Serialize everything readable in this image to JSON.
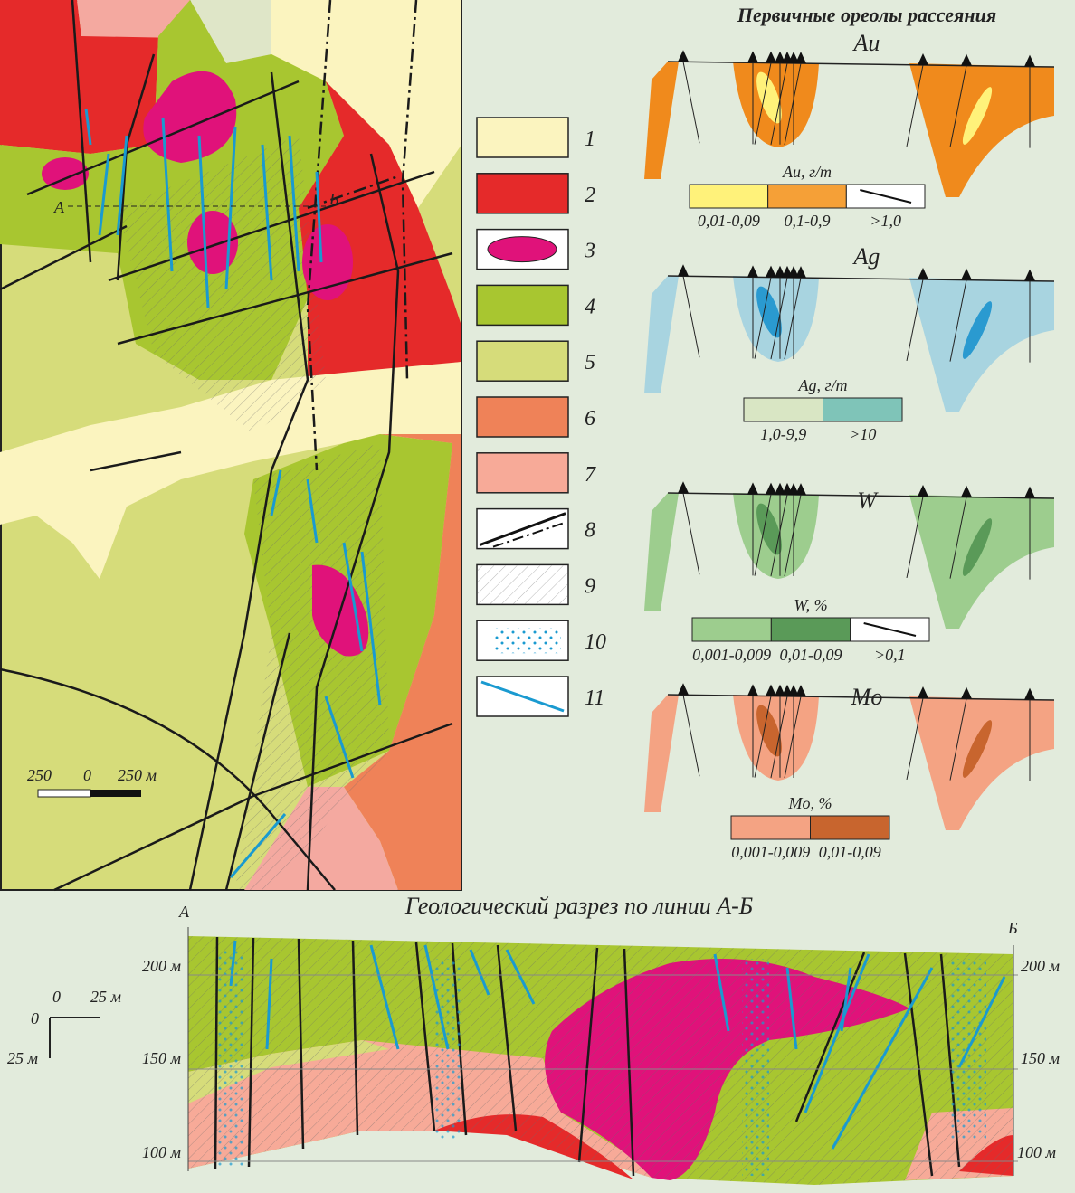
{
  "map": {
    "label_a": "А",
    "label_b": "Б",
    "scale": [
      "250",
      "0",
      "250 м"
    ]
  },
  "legend": [
    "1",
    "2",
    "3",
    "4",
    "5",
    "6",
    "7",
    "8",
    "9",
    "10",
    "11"
  ],
  "halos": {
    "title": "Первичные ореолы рассеяния",
    "panels": [
      {
        "element": "Au",
        "scale_title": "Au, г/т",
        "classes": [
          "0,01-0,09",
          "0,1-0,9",
          ">1,0"
        ]
      },
      {
        "element": "Ag",
        "scale_title": "Ag, г/т",
        "classes": [
          "1,0-9,9",
          ">10"
        ]
      },
      {
        "element": "W",
        "scale_title": "W, %",
        "classes": [
          "0,001-0,009",
          "0,01-0,09",
          ">0,1"
        ]
      },
      {
        "element": "Mo",
        "scale_title": "Mo, %",
        "classes": [
          "0,001-0,009",
          "0,01-0,09"
        ]
      }
    ]
  },
  "section": {
    "title": "Геологический разрез по линии А-Б",
    "start": "А",
    "end": "Б",
    "depths_left": [
      "200 м",
      "150 м",
      "100 м"
    ],
    "depths_right": [
      "200 м",
      "150 м",
      "100 м"
    ],
    "scale": [
      "0",
      "25 м",
      "0",
      "25 м"
    ]
  }
}
